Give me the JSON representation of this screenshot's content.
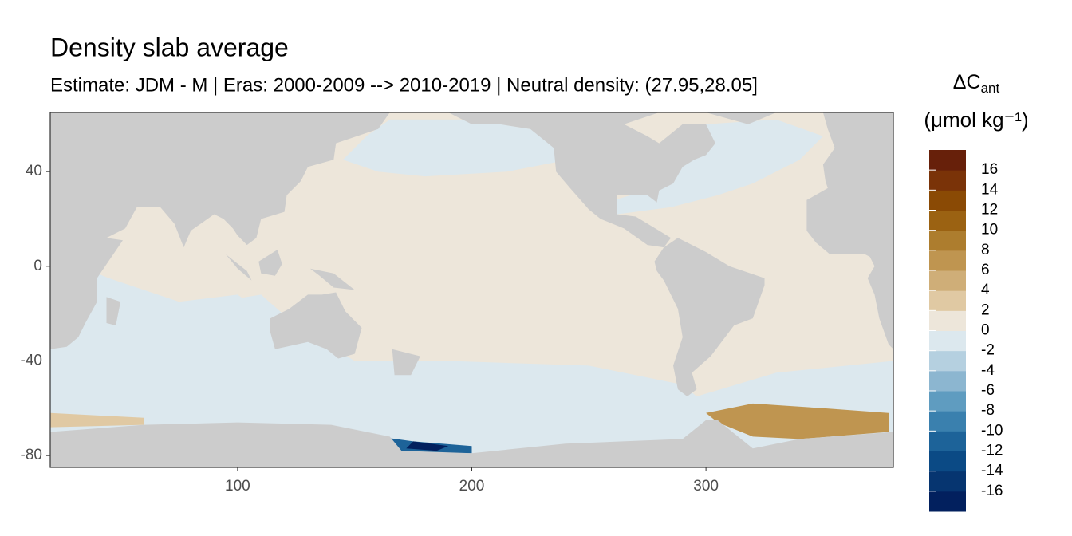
{
  "chart_data": {
    "type": "map",
    "title": "Density slab average",
    "subtitle": "Estimate: JDM - M | Eras: 2000-2009 --> 2010-2019 | Neutral density: (27.95,28.05]",
    "xlim": [
      20,
      380
    ],
    "ylim": [
      -85,
      65
    ],
    "xticks": [
      100,
      200,
      300
    ],
    "yticks": [
      40,
      0,
      -40,
      -80
    ],
    "land_color": "#cccccc",
    "legend": {
      "title": "ΔC",
      "title_subscript": "ant",
      "unit": "(μmol kg⁻¹)",
      "limits": [
        -18,
        18
      ],
      "breaks": [
        -16,
        -14,
        -12,
        -10,
        -8,
        -6,
        -4,
        -2,
        0,
        2,
        4,
        6,
        8,
        10,
        12,
        14,
        16
      ],
      "colors": [
        "#02205e",
        "#063570",
        "#0b4a85",
        "#1d6399",
        "#3a80ae",
        "#5f9cc0",
        "#8cb6d0",
        "#b5d0e0",
        "#dce8ee",
        "#ede6da",
        "#e0c9a3",
        "#cfae78",
        "#bf9550",
        "#ad7d2e",
        "#9b6212",
        "#8a4a05",
        "#7a3308",
        "#67200a"
      ]
    }
  }
}
